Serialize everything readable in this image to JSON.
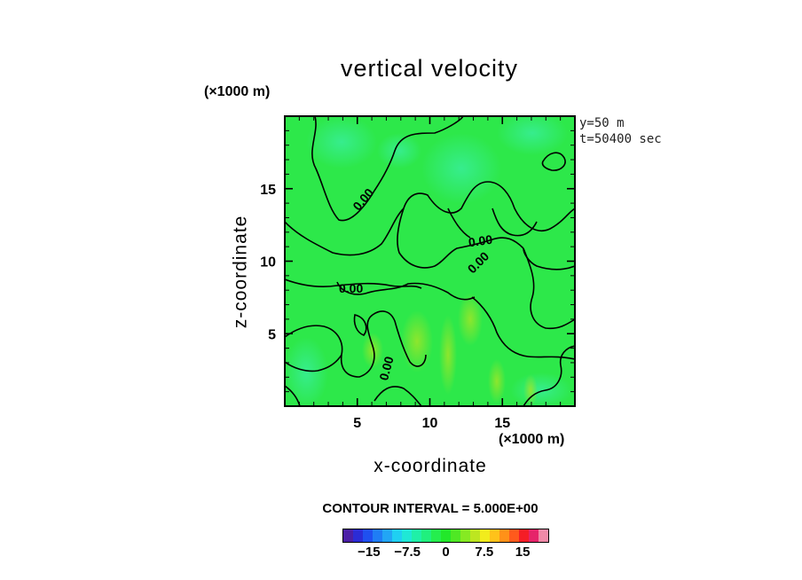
{
  "chart_data": {
    "type": "heatmap",
    "title": "vertical velocity",
    "xlabel": "x-coordinate",
    "ylabel": "z-coordinate",
    "x_unit": "(×1000 m)",
    "y_unit": "(×1000 m)",
    "xlim": [
      0,
      20
    ],
    "ylim": [
      0,
      20
    ],
    "x_ticks": [
      "5",
      "10",
      "15"
    ],
    "y_ticks": [
      "5",
      "10",
      "15"
    ],
    "annotation_lines": [
      "y=50 m",
      "t=50400 sec"
    ],
    "contour_labels": [
      "0.00",
      "0.00",
      "0.00",
      "0.00",
      "0.00"
    ],
    "contour_interval_text": "CONTOUR INTERVAL = 5.000E+00",
    "colorbar": {
      "ticks": [
        "−15",
        "−7.5",
        "0",
        "7.5",
        "15"
      ],
      "tick_values": [
        -15,
        -7.5,
        0,
        7.5,
        15
      ],
      "range": [
        -20,
        20
      ],
      "colors": [
        "#4b1fa6",
        "#2b2cd6",
        "#1f50f0",
        "#1f7df5",
        "#22a6f5",
        "#1fd0f2",
        "#1fe8d6",
        "#1ff0a8",
        "#20f07e",
        "#25ee4e",
        "#22e82a",
        "#4fe824",
        "#86ea22",
        "#bde620",
        "#f2ec1c",
        "#ffc21a",
        "#ff9118",
        "#ff5a1c",
        "#f51d26",
        "#e6246a",
        "#f08aa8"
      ]
    },
    "field": "mostly near-zero green field (~0 to +3) with bluish patches in upper area and yellow-green streaks near lower center"
  }
}
